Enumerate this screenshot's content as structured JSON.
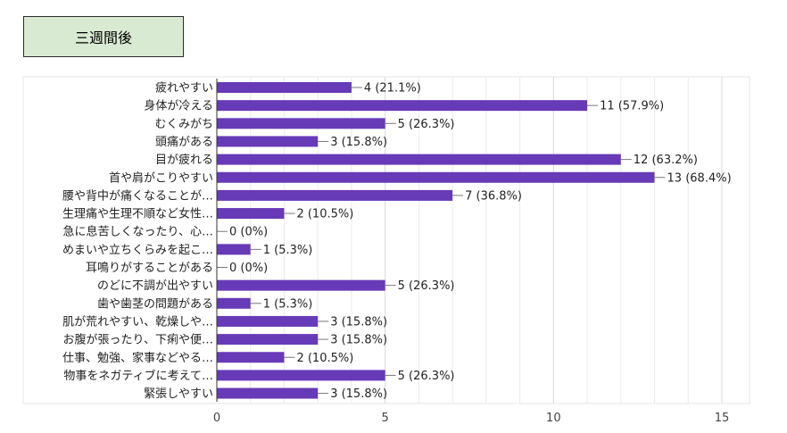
{
  "header": {
    "title": "三週間後"
  },
  "chart_data": {
    "type": "bar",
    "orientation": "horizontal",
    "categories": [
      "疲れやすい",
      "身体が冷える",
      "むくみがち",
      "頭痛がある",
      "目が疲れる",
      "首や肩がこりやすい",
      "腰や背中が痛くなることが…",
      "生理痛や生理不順など女性…",
      "急に息苦しくなったり、心…",
      "めまいや立ちくらみを起こ…",
      "耳鳴りがすることがある",
      "のどに不調が出やすい",
      "歯や歯茎の問題がある",
      "肌が荒れやすい、乾燥しや…",
      "お腹が張ったり、下痢や便…",
      "仕事、勉強、家事などやる…",
      "物事をネガティブに考えて…",
      "緊張しやすい"
    ],
    "values": [
      4,
      11,
      5,
      3,
      12,
      13,
      7,
      2,
      0,
      1,
      0,
      5,
      1,
      3,
      3,
      2,
      5,
      3
    ],
    "value_labels": [
      "4 (21.1%)",
      "11 (57.9%)",
      "5 (26.3%)",
      "3 (15.8%)",
      "12 (63.2%)",
      "13 (68.4%)",
      "7 (36.8%)",
      "2 (10.5%)",
      "0 (0%)",
      "1 (5.3%)",
      "0 (0%)",
      "5 (26.3%)",
      "1 (5.3%)",
      "3 (15.8%)",
      "3 (15.8%)",
      "2 (10.5%)",
      "5 (26.3%)",
      "3 (15.8%)"
    ],
    "xlim": [
      0,
      15
    ],
    "xticks": [
      "0",
      "5",
      "10",
      "15"
    ],
    "bar_color": "#673ab7",
    "grid": true,
    "legend": "none"
  }
}
